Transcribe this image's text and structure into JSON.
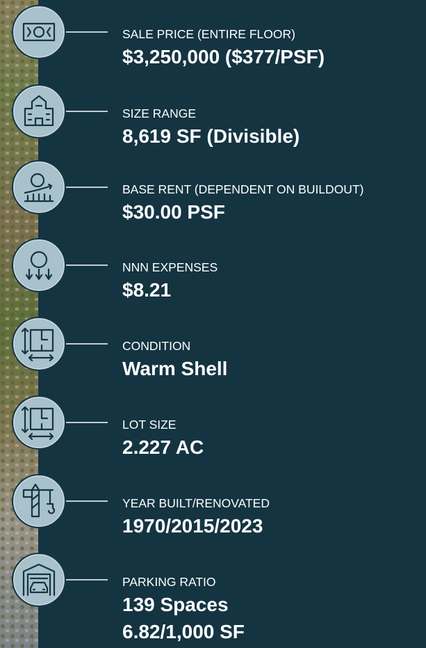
{
  "items": [
    {
      "label": "SALE PRICE (ENTIRE FLOOR)",
      "values": [
        "$3,250,000 ($377/PSF)"
      ]
    },
    {
      "label": "SIZE RANGE",
      "values": [
        "8,619 SF (Divisible)"
      ]
    },
    {
      "label": "BASE RENT (DEPENDENT ON BUILDOUT)",
      "values": [
        "$30.00 PSF"
      ]
    },
    {
      "label": "NNN EXPENSES",
      "values": [
        "$8.21"
      ]
    },
    {
      "label": "CONDITION",
      "values": [
        "Warm Shell"
      ]
    },
    {
      "label": "LOT SIZE",
      "values": [
        "2.227 AC"
      ]
    },
    {
      "label": "YEAR BUILT/RENOVATED",
      "values": [
        "1970/2015/2023"
      ]
    },
    {
      "label": "PARKING RATIO",
      "values": [
        "139 Spaces",
        "6.82/1,000 SF"
      ]
    }
  ]
}
